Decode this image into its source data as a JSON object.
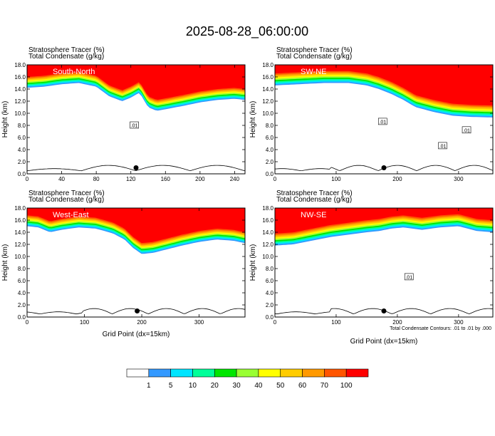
{
  "figure_title": "2025-08-28_06:00:00",
  "colors": [
    "#ffffff",
    "#3399ff",
    "#00e5ff",
    "#00ff99",
    "#00e600",
    "#99ff33",
    "#ffff00",
    "#ffcc00",
    "#ff9900",
    "#ff5500",
    "#ff0000"
  ],
  "colorbar_labels": [
    "1",
    "5",
    "10",
    "20",
    "30",
    "40",
    "50",
    "60",
    "70",
    "100"
  ],
  "contour_note": "Total Condensate Contours: .01 to .01 by .000",
  "contour_labels": [
    ".01"
  ],
  "chart_data": [
    {
      "type": "heatmap",
      "title": "South-North",
      "left_titles": [
        "Stratosphere Tracer   (%)",
        "Total Condensate   (g/kg)"
      ],
      "ylabel": "Height (km)",
      "xlabel": "",
      "xlim": [
        0,
        252
      ],
      "xticks": [
        "0",
        "40",
        "80",
        "120",
        "160",
        "200",
        "240"
      ],
      "xtick_values": [
        0,
        40,
        80,
        120,
        160,
        200,
        240
      ],
      "ylim": [
        0,
        18
      ],
      "yticks": [
        "0.0",
        "2.0",
        "4.0",
        "6.0",
        "8.0",
        "10.0",
        "12.0",
        "14.0",
        "16.0",
        "18.0"
      ],
      "ytick_values": [
        0,
        2,
        4,
        6,
        8,
        10,
        12,
        14,
        16,
        18
      ],
      "tracer_base_km": [
        [
          0,
          14.2
        ],
        [
          20,
          14.4
        ],
        [
          40,
          14.8
        ],
        [
          60,
          15.0
        ],
        [
          80,
          14.4
        ],
        [
          95,
          12.8
        ],
        [
          110,
          12.0
        ],
        [
          120,
          12.6
        ],
        [
          130,
          13.4
        ],
        [
          140,
          11.0
        ],
        [
          150,
          10.4
        ],
        [
          165,
          10.8
        ],
        [
          180,
          11.2
        ],
        [
          200,
          11.8
        ],
        [
          220,
          12.2
        ],
        [
          240,
          12.4
        ],
        [
          252,
          12.2
        ]
      ],
      "tracer_band_km": 2.0,
      "contour_labels_at": [
        [
          124,
          8.0
        ]
      ],
      "marker_x": 126
    },
    {
      "type": "heatmap",
      "title": "SW-NE",
      "left_titles": [
        "Stratosphere Tracer   (%)",
        "Total Condensate   (g/kg)"
      ],
      "ylabel": "Height (km)",
      "xlabel": "",
      "xlim": [
        0,
        356
      ],
      "xticks": [
        "0",
        "100",
        "200",
        "300"
      ],
      "xtick_values": [
        0,
        100,
        200,
        300
      ],
      "ylim": [
        0,
        18
      ],
      "yticks": [
        "0.0",
        "2.0",
        "4.0",
        "6.0",
        "8.0",
        "10.0",
        "12.0",
        "14.0",
        "16.0",
        "18.0"
      ],
      "ytick_values": [
        0,
        2,
        4,
        6,
        8,
        10,
        12,
        14,
        16,
        18
      ],
      "tracer_base_km": [
        [
          0,
          14.6
        ],
        [
          40,
          14.8
        ],
        [
          80,
          15.0
        ],
        [
          120,
          15.0
        ],
        [
          150,
          14.6
        ],
        [
          170,
          14.0
        ],
        [
          190,
          13.2
        ],
        [
          210,
          12.2
        ],
        [
          230,
          11.0
        ],
        [
          260,
          10.2
        ],
        [
          290,
          9.6
        ],
        [
          320,
          9.4
        ],
        [
          356,
          9.3
        ]
      ],
      "tracer_band_km": 2.2,
      "contour_labels_at": [
        [
          176,
          8.6
        ],
        [
          274,
          4.6
        ],
        [
          313,
          7.2
        ]
      ],
      "marker_x": 178
    },
    {
      "type": "heatmap",
      "title": "West-East",
      "left_titles": [
        "Stratosphere Tracer   (%)",
        "Total Condensate   (g/kg)"
      ],
      "ylabel": "Height (km)",
      "xlabel": "Grid Point (dx=15km)",
      "xlim": [
        0,
        380
      ],
      "xticks": [
        "0",
        "100",
        "200",
        "300"
      ],
      "xtick_values": [
        0,
        100,
        200,
        300
      ],
      "ylim": [
        0,
        18
      ],
      "yticks": [
        "0.0",
        "2.0",
        "4.0",
        "6.0",
        "8.0",
        "10.0",
        "12.0",
        "14.0",
        "16.0",
        "18.0"
      ],
      "ytick_values": [
        0,
        2,
        4,
        6,
        8,
        10,
        12,
        14,
        16,
        18
      ],
      "tracer_base_km": [
        [
          0,
          15.0
        ],
        [
          20,
          14.8
        ],
        [
          40,
          14.0
        ],
        [
          60,
          14.4
        ],
        [
          90,
          14.8
        ],
        [
          120,
          14.6
        ],
        [
          150,
          13.8
        ],
        [
          170,
          12.8
        ],
        [
          185,
          11.4
        ],
        [
          200,
          10.4
        ],
        [
          220,
          10.6
        ],
        [
          245,
          11.2
        ],
        [
          270,
          11.8
        ],
        [
          300,
          12.4
        ],
        [
          330,
          12.8
        ],
        [
          360,
          12.6
        ],
        [
          380,
          12.2
        ]
      ],
      "tracer_band_km": 2.0,
      "contour_labels_at": [],
      "marker_x": 192
    },
    {
      "type": "heatmap",
      "title": "NW-SE",
      "left_titles": [
        "Stratosphere Tracer   (%)",
        "Total Condensate   (g/kg)"
      ],
      "ylabel": "Height (km)",
      "xlabel": "Grid Point (dx=15km)",
      "xlim": [
        0,
        356
      ],
      "xticks": [
        "0",
        "100",
        "200",
        "300"
      ],
      "xtick_values": [
        0,
        100,
        200,
        300
      ],
      "ylim": [
        0,
        18
      ],
      "yticks": [
        "0.0",
        "2.0",
        "4.0",
        "6.0",
        "8.0",
        "10.0",
        "12.0",
        "14.0",
        "16.0",
        "18.0"
      ],
      "ytick_values": [
        0,
        2,
        4,
        6,
        8,
        10,
        12,
        14,
        16,
        18
      ],
      "tracer_base_km": [
        [
          0,
          11.8
        ],
        [
          30,
          12.0
        ],
        [
          60,
          12.6
        ],
        [
          90,
          13.2
        ],
        [
          120,
          13.6
        ],
        [
          150,
          14.0
        ],
        [
          170,
          14.2
        ],
        [
          190,
          14.6
        ],
        [
          210,
          14.8
        ],
        [
          240,
          14.4
        ],
        [
          270,
          14.8
        ],
        [
          300,
          15.0
        ],
        [
          330,
          14.2
        ],
        [
          356,
          14.0
        ]
      ],
      "tracer_band_km": 2.2,
      "contour_labels_at": [
        [
          219,
          6.6
        ]
      ],
      "marker_x": 178
    }
  ]
}
